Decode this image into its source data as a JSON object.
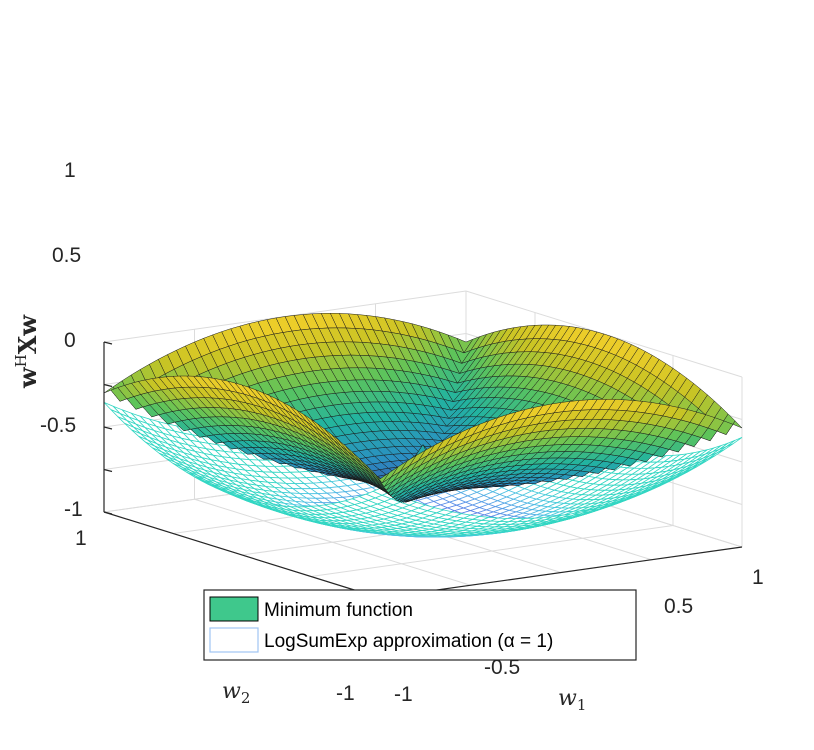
{
  "chart_data": {
    "type": "surface3d",
    "title": "",
    "xlabel_text": "w",
    "xlabel_sub": "1",
    "ylabel_text": "w",
    "ylabel_sub": "2",
    "zlabel_text": "w",
    "zlabel_sup": "H",
    "zlabel_bold": "Xw",
    "xlim": [
      -1,
      1
    ],
    "ylim": [
      -1,
      1
    ],
    "zlim": [
      -1,
      1
    ],
    "zticks": [
      "1",
      "0.5",
      "0",
      "-0.5",
      "-1"
    ],
    "xticks": [
      "-1",
      "-0.5",
      "0.5",
      "1"
    ],
    "yticks": [
      "1",
      "-1"
    ],
    "grid": true,
    "legend_position": "bottom-center",
    "series": [
      {
        "name": "Minimum function",
        "kind": "surface",
        "formula": "min over corners: z = 1 - 2*min(|w1|,|w2|)... (minimum of linear functions)",
        "colormap": [
          "#3f1f7f",
          "#2b8ec4",
          "#22b3a0",
          "#5dc45b",
          "#c9c424",
          "#f6d02b"
        ]
      },
      {
        "name": "LogSumExp approximation (α = 1)",
        "kind": "mesh",
        "colormap": [
          "#4e3bd9",
          "#5c8fe8",
          "#4fc6e2",
          "#33d6c3"
        ]
      }
    ]
  },
  "legend": {
    "entries": [
      {
        "label": "Minimum function",
        "swatch": "#3fc88c"
      },
      {
        "label": "LogSumExp approximation (α = 1)",
        "swatch": "#9fc4f3"
      }
    ]
  },
  "colors": {
    "axis": "#262626",
    "grid": "#dcdcdc"
  }
}
